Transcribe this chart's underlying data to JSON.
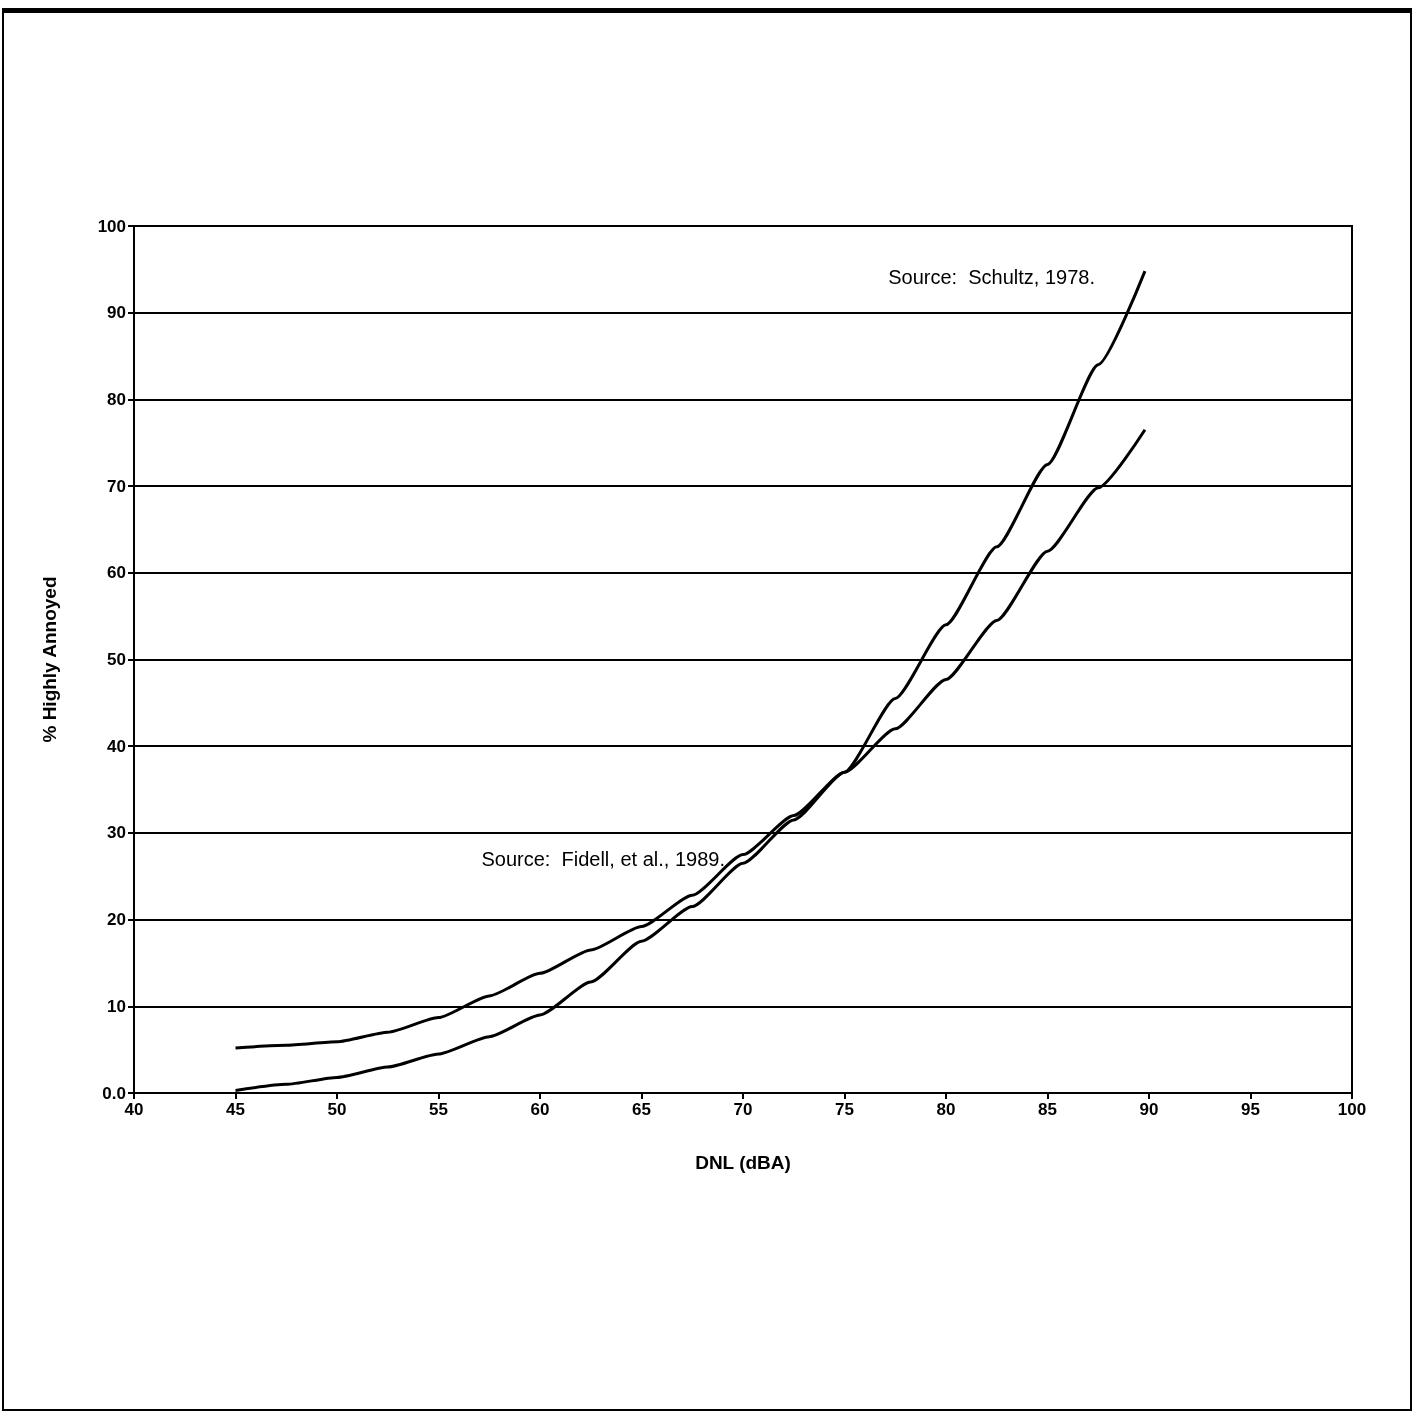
{
  "chart_data": {
    "type": "line",
    "xlabel": "DNL (dBA)",
    "ylabel": "% Highly Annoyed",
    "x": [
      45,
      47.5,
      50,
      52.5,
      55,
      57.5,
      60,
      62.5,
      65,
      67.5,
      70,
      72.5,
      75,
      77.5,
      80,
      82.5,
      85,
      87.5,
      89.8
    ],
    "series": [
      {
        "color": "#000000",
        "values": [
          0.3,
          1,
          1.8,
          3,
          4.5,
          6.5,
          9,
          12.8,
          17.5,
          21.5,
          26.5,
          31.5,
          37,
          45.5,
          54,
          63,
          72.5,
          84,
          94.8
        ]
      },
      {
        "color": "#000000",
        "values": [
          5.2,
          5.5,
          5.9,
          7,
          8.7,
          11.2,
          13.8,
          16.5,
          19.2,
          22.8,
          27.5,
          32,
          37,
          42,
          47.7,
          54.5,
          62.5,
          69.8,
          76.5
        ]
      }
    ],
    "xlim": [
      40,
      100
    ],
    "xticks": [
      40,
      45,
      50,
      55,
      60,
      65,
      70,
      75,
      80,
      85,
      90,
      95,
      100
    ],
    "ylim": [
      0,
      100
    ],
    "yticks": [
      {
        "value": 0,
        "label": "0.0"
      },
      10,
      20,
      30,
      40,
      50,
      60,
      70,
      80,
      90,
      100
    ],
    "grid": "y",
    "marker": "none",
    "line_style": "solid",
    "annotations": [
      "Source:  Schultz, 1978.",
      {
        "text": "Source:  Fidell, et al., 1989.",
        "x": 69.8,
        "y": 27
      }
    ]
  }
}
